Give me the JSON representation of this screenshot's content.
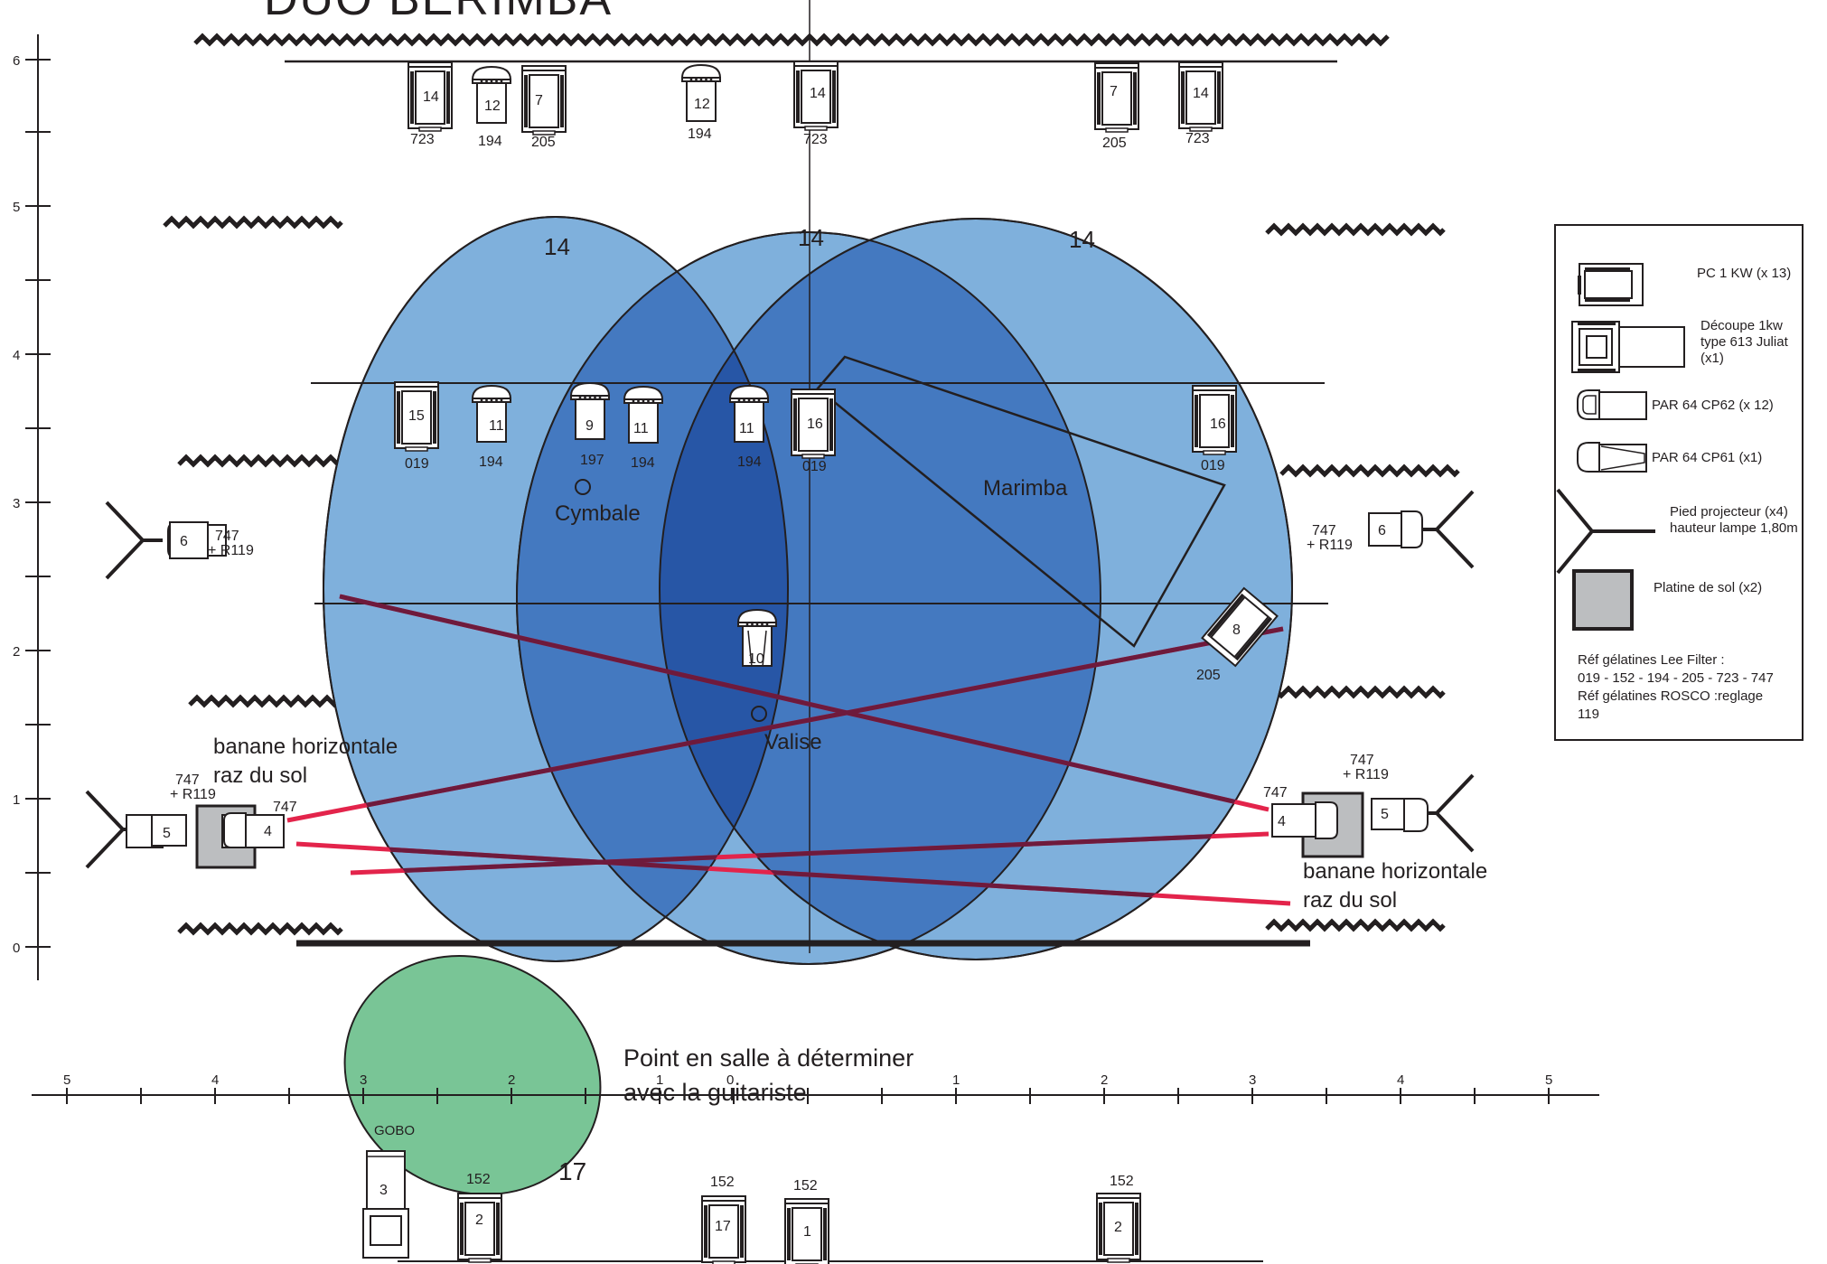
{
  "title": "DUO BERIMBA",
  "y_axis_ticks": [
    "0",
    "1",
    "2",
    "3",
    "4",
    "5",
    "6"
  ],
  "x_axis_ticks_left": [
    "5",
    "4",
    "3",
    "2",
    "1"
  ],
  "x_axis_center_tick": "0",
  "x_axis_ticks_right": [
    "1",
    "2",
    "3",
    "4",
    "5"
  ],
  "circles": {
    "left": "14",
    "center": "14",
    "right": "14",
    "front": "17"
  },
  "labels": {
    "marimba": "Marimba",
    "cymbale": "Cymbale",
    "valise": "Valise",
    "banana_left_1": "banane horizontale",
    "banana_left_2": "raz du sol",
    "banana_right_1": "banane horizontale",
    "banana_right_2": "raz du sol",
    "audience_point_1": "Point  en salle à déterminer",
    "audience_point_2": "avec la guitariste",
    "gobo": "GOBO"
  },
  "fixtures": {
    "top_14a": {
      "num": "14",
      "gel": "723"
    },
    "top_12a": {
      "num": "12",
      "gel": "194"
    },
    "top_7a": {
      "num": "7",
      "gel": "205"
    },
    "top_12b": {
      "num": "12",
      "gel": "194"
    },
    "top_14b": {
      "num": "14",
      "gel": "723"
    },
    "top_7b": {
      "num": "7",
      "gel": "205"
    },
    "top_14c": {
      "num": "14",
      "gel": "723"
    },
    "mid_15": {
      "num": "15",
      "gel": "019"
    },
    "mid_11a": {
      "num": "11",
      "gel": "194"
    },
    "mid_9": {
      "num": "9",
      "gel": "197"
    },
    "mid_11b": {
      "num": "11",
      "gel": "194"
    },
    "mid_11c": {
      "num": "11",
      "gel": "194"
    },
    "mid_16a": {
      "num": "16",
      "gel": "019"
    },
    "mid_16b": {
      "num": "16",
      "gel": "019"
    },
    "floor_10": {
      "num": "10"
    },
    "cut_8": {
      "num": "8",
      "gel": "205"
    },
    "side_left_6": {
      "num": "6",
      "gel1": "747",
      "gel2": "+ R119"
    },
    "side_right_6": {
      "num": "6",
      "gel1": "747",
      "gel2": "+ R119"
    },
    "left_5": {
      "num": "5",
      "gel1": "747",
      "gel2": "+ R119"
    },
    "left_4": {
      "num": "4",
      "gel": "747"
    },
    "right_4": {
      "num": "4",
      "gel": "747"
    },
    "right_5": {
      "num": "5",
      "gel1": "747",
      "gel2": "+ R119"
    },
    "front_3": {
      "num": "3"
    },
    "front_2a": {
      "num": "2",
      "gel": "152"
    },
    "front_17": {
      "num": "17",
      "gel": "152"
    },
    "front_1": {
      "num": "1",
      "gel": "152"
    },
    "front_2b": {
      "num": "2",
      "gel": "152"
    }
  },
  "legend": {
    "pc": "PC 1 KW (x 13)",
    "decoupe_1": "Découpe 1kw",
    "decoupe_2": "type 613 Juliat",
    "decoupe_3": "(x1)",
    "par62": "PAR 64 CP62 (x 12)",
    "par61": "PAR 64 CP61 (x1)",
    "pied_1": "Pied projecteur (x4)",
    "pied_2": "hauteur lampe 1,80m",
    "platine": "Platine de sol (x2)",
    "ref_1": "Réf gélatines Lee Filter :",
    "ref_2": "019 - 152 - 194 - 205  - 723 - 747",
    "ref_3": "Réf gélatines ROSCO :reglage",
    "ref_4": "119"
  },
  "colors": {
    "light_blue": "#7fb0dc",
    "mid_blue": "#4479c0",
    "dark_blue": "#2756a6",
    "green": "#79c596",
    "red_line": "#e3244b",
    "dark_line": "#231f20",
    "platine": "#bcbec0"
  }
}
